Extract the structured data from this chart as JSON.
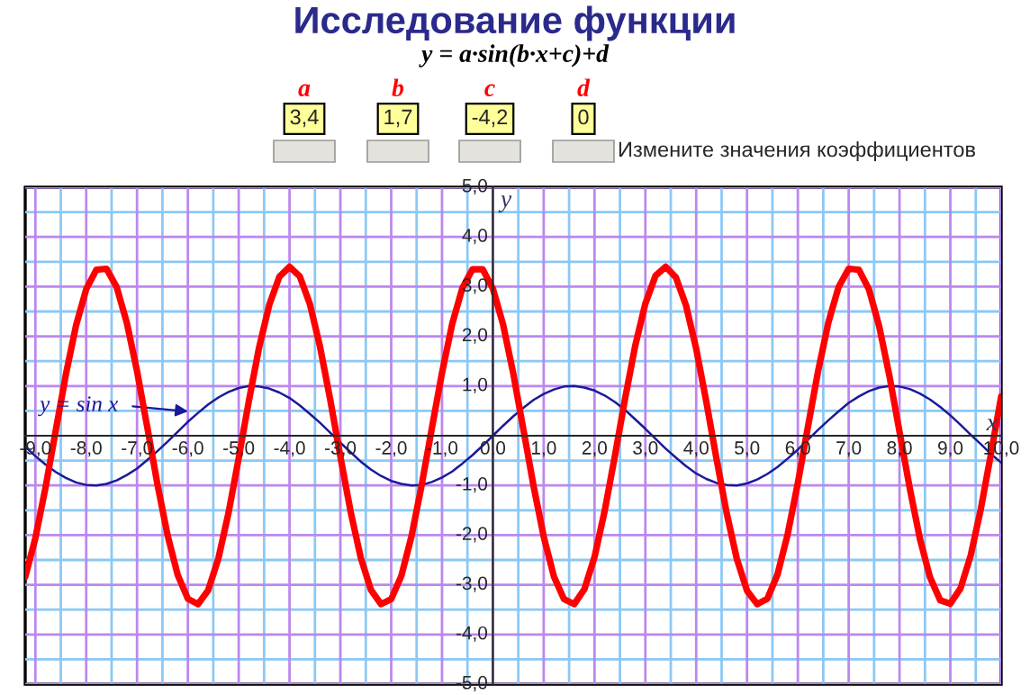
{
  "chart_data": {
    "type": "line",
    "title": "Исследование функции",
    "subtitle": "y = a·sin(b·x+c)+d",
    "xlabel": "x",
    "ylabel": "y",
    "x": [
      -9.2,
      -9.0,
      -8.8,
      -8.6,
      -8.4,
      -8.2,
      -8.0,
      -7.8,
      -7.6,
      -7.4,
      -7.2,
      -7.0,
      -6.8,
      -6.6,
      -6.4,
      -6.2,
      -6.0,
      -5.8,
      -5.6,
      -5.4,
      -5.2,
      -5.0,
      -4.8,
      -4.6,
      -4.4,
      -4.2,
      -4.0,
      -3.8,
      -3.6,
      -3.4,
      -3.2,
      -3.0,
      -2.8,
      -2.6,
      -2.4,
      -2.2,
      -2.0,
      -1.8,
      -1.6,
      -1.4,
      -1.2,
      -1.0,
      -0.8,
      -0.6,
      -0.4,
      -0.2,
      0.0,
      0.2,
      0.4,
      0.6,
      0.8,
      1.0,
      1.2,
      1.4,
      1.6,
      1.8,
      2.0,
      2.2,
      2.4,
      2.6,
      2.8,
      3.0,
      3.2,
      3.4,
      3.6,
      3.8,
      4.0,
      4.2,
      4.4,
      4.6,
      4.8,
      5.0,
      5.2,
      5.4,
      5.6,
      5.8,
      6.0,
      6.2,
      6.4,
      6.6,
      6.8,
      7.0,
      7.2,
      7.4,
      7.6,
      7.8,
      8.0,
      8.2,
      8.4,
      8.6,
      8.8,
      9.0,
      9.2,
      9.4,
      9.6,
      9.8,
      10.0
    ],
    "series": [
      {
        "color": "#ff0000",
        "values": [
          -2.84,
          -2.06,
          -1.04,
          0.1,
          1.23,
          2.22,
          2.95,
          3.34,
          3.36,
          2.99,
          2.27,
          1.3,
          0.18,
          -0.97,
          -2.0,
          -2.8,
          -3.28,
          -3.39,
          -3.11,
          -2.47,
          -1.55,
          -0.45,
          0.7,
          1.77,
          2.63,
          3.2,
          3.4,
          3.21,
          2.65,
          1.79,
          0.73,
          -0.42,
          -1.52,
          -2.45,
          -3.1,
          -3.39,
          -3.29,
          -2.82,
          -2.02,
          -0.99,
          0.15,
          1.27,
          2.25,
          2.97,
          3.35,
          3.35,
          2.96,
          2.24,
          1.26,
          0.13,
          -1.01,
          -2.03,
          -2.83,
          -3.29,
          -3.39,
          -3.09,
          -2.44,
          -1.51,
          -0.41,
          0.74,
          1.81,
          2.66,
          3.22,
          3.4,
          3.19,
          2.62,
          1.75,
          0.68,
          -0.47,
          -1.56,
          -2.48,
          -3.12,
          -3.39,
          -3.28,
          -2.79,
          -1.98,
          -0.95,
          0.19,
          1.31,
          2.28,
          2.99,
          3.36,
          3.34,
          2.94,
          2.2,
          1.21,
          0.08,
          -1.05,
          -2.07,
          -2.85,
          -3.31,
          -3.38,
          -3.07,
          -2.41,
          -1.47,
          -0.36,
          0.79
        ]
      },
      {
        "color": "#1a1a99",
        "values": [
          -0.22,
          -0.41,
          -0.58,
          -0.73,
          -0.85,
          -0.94,
          -0.99,
          -1.0,
          -0.97,
          -0.9,
          -0.79,
          -0.66,
          -0.49,
          -0.31,
          -0.12,
          0.08,
          0.28,
          0.46,
          0.63,
          0.77,
          0.88,
          0.96,
          1.0,
          0.99,
          0.95,
          0.87,
          0.76,
          0.61,
          0.44,
          0.26,
          0.06,
          -0.14,
          -0.33,
          -0.52,
          -0.68,
          -0.81,
          -0.91,
          -0.97,
          -1.0,
          -0.99,
          -0.93,
          -0.84,
          -0.72,
          -0.56,
          -0.39,
          -0.2,
          0.0,
          0.2,
          0.39,
          0.56,
          0.72,
          0.84,
          0.93,
          0.99,
          1.0,
          0.97,
          0.91,
          0.81,
          0.68,
          0.52,
          0.33,
          0.14,
          -0.06,
          -0.26,
          -0.44,
          -0.61,
          -0.76,
          -0.87,
          -0.95,
          -0.99,
          -1.0,
          -0.96,
          -0.88,
          -0.77,
          -0.63,
          -0.46,
          -0.28,
          -0.08,
          0.12,
          0.31,
          0.49,
          0.66,
          0.79,
          0.9,
          0.97,
          1.0,
          0.99,
          0.94,
          0.85,
          0.73,
          0.58,
          0.41,
          0.22,
          0.02,
          -0.17,
          -0.37,
          -0.54
        ]
      }
    ],
    "xlim": [
      -9.2,
      10.0
    ],
    "ylim": [
      -5.0,
      5.0
    ],
    "xticks": [
      {
        "value": -9,
        "label": "-9,0"
      },
      {
        "value": -8.5,
        "label": null
      },
      {
        "value": -8,
        "label": "-8,0"
      },
      {
        "value": -7.5,
        "label": null
      },
      {
        "value": -7,
        "label": "-7,0"
      },
      {
        "value": -6.5,
        "label": null
      },
      {
        "value": -6,
        "label": "-6,0"
      },
      {
        "value": -5.5,
        "label": null
      },
      {
        "value": -5,
        "label": "-5,0"
      },
      {
        "value": -4.5,
        "label": null
      },
      {
        "value": -4,
        "label": "-4,0"
      },
      {
        "value": -3.5,
        "label": null
      },
      {
        "value": -3,
        "label": "-3,0"
      },
      {
        "value": -2.5,
        "label": null
      },
      {
        "value": -2,
        "label": "-2,0"
      },
      {
        "value": -1.5,
        "label": null
      },
      {
        "value": -1,
        "label": "-1,0"
      },
      {
        "value": -0.5,
        "label": null
      },
      {
        "value": 0,
        "label": "0,0"
      },
      {
        "value": 0.5,
        "label": null
      },
      {
        "value": 1,
        "label": "1,0"
      },
      {
        "value": 1.5,
        "label": null
      },
      {
        "value": 2,
        "label": "2,0"
      },
      {
        "value": 2.5,
        "label": null
      },
      {
        "value": 3,
        "label": "3,0"
      },
      {
        "value": 3.5,
        "label": null
      },
      {
        "value": 4,
        "label": "4,0"
      },
      {
        "value": 4.5,
        "label": null
      },
      {
        "value": 5,
        "label": "5,0"
      },
      {
        "value": 5.5,
        "label": null
      },
      {
        "value": 6,
        "label": "6,0"
      },
      {
        "value": 6.5,
        "label": null
      },
      {
        "value": 7,
        "label": "7,0"
      },
      {
        "value": 7.5,
        "label": null
      },
      {
        "value": 8,
        "label": "8,0"
      },
      {
        "value": 8.5,
        "label": null
      },
      {
        "value": 9,
        "label": "9,0"
      },
      {
        "value": 9.5,
        "label": null
      },
      {
        "value": 10,
        "label": "10,0"
      }
    ],
    "yticks": [
      {
        "value": -5,
        "label": "-5,0"
      },
      {
        "value": -4.5,
        "label": null
      },
      {
        "value": -4,
        "label": "-4,0"
      },
      {
        "value": -3.5,
        "label": null
      },
      {
        "value": -3,
        "label": "-3,0"
      },
      {
        "value": -2.5,
        "label": null
      },
      {
        "value": -2,
        "label": "-2,0"
      },
      {
        "value": -1.5,
        "label": null
      },
      {
        "value": -1,
        "label": "-1,0"
      },
      {
        "value": -0.5,
        "label": null
      },
      {
        "value": 0.5,
        "label": null
      },
      {
        "value": 1,
        "label": "1,0"
      },
      {
        "value": 1.5,
        "label": null
      },
      {
        "value": 2,
        "label": "2,0"
      },
      {
        "value": 2.5,
        "label": null
      },
      {
        "value": 3,
        "label": "3,0"
      },
      {
        "value": 3.5,
        "label": null
      },
      {
        "value": 4,
        "label": "4,0"
      },
      {
        "value": 4.5,
        "label": null
      },
      {
        "value": 5,
        "label": "5,0"
      }
    ],
    "grid": true,
    "line_style": "solid",
    "marker": "none",
    "annotations": [
      "a",
      "b",
      "c",
      "d",
      "3,4",
      "1,7",
      "-4,2",
      "0",
      "Измените значения коэффициентов",
      "y = sin x"
    ]
  }
}
